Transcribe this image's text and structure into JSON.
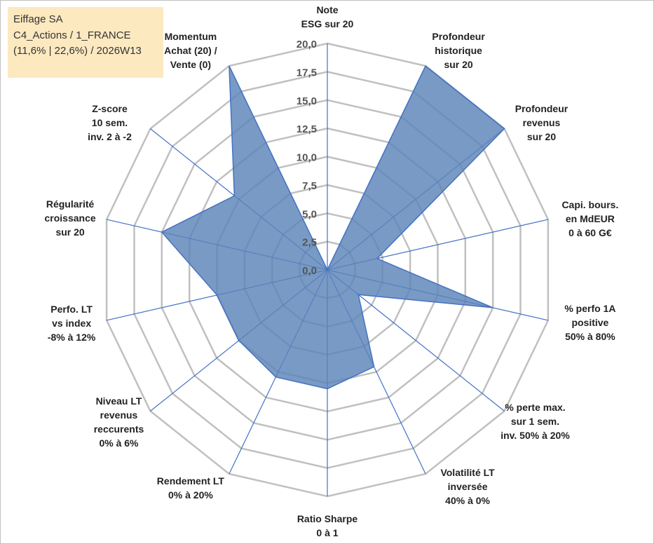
{
  "info": {
    "line1": "Eiffage SA",
    "line2": "C4_Actions / 1_FRANCE",
    "line3": "(11,6% | 22,6%) / 2026W13"
  },
  "chart_data": {
    "type": "radar",
    "rmin": 0,
    "rmax": 20,
    "ticks": [
      "0,0",
      "2,5",
      "5,0",
      "7,5",
      "10,0",
      "12,5",
      "15,0",
      "17,5",
      "20,0"
    ],
    "axes": [
      [
        "Note",
        "ESG sur 20"
      ],
      [
        "Profondeur",
        "historique",
        "sur 20"
      ],
      [
        "Profondeur",
        "revenus",
        "sur 20"
      ],
      [
        "Capi. bours.",
        "en MdEUR",
        "0 à 60 G€"
      ],
      [
        "% perfo 1A",
        "positive",
        "50% à 80%"
      ],
      [
        "% perte max.",
        "sur 1 sem.",
        "inv. 50% à 20%"
      ],
      [
        "Volatilité LT",
        "inversée",
        "40% à 0%"
      ],
      [
        "Ratio Sharpe",
        "0 à 1"
      ],
      [
        "Rendement LT",
        "0% à 20%"
      ],
      [
        "Niveau LT",
        "revenus",
        "reccurents",
        "0% à 6%"
      ],
      [
        "Perfo. LT",
        "vs index",
        "-8% à 12%"
      ],
      [
        "Régularité",
        "croissance",
        "sur 20"
      ],
      [
        "Z-score",
        "10 sem.",
        "inv. 2 à -2"
      ],
      [
        "Momentum",
        "Achat (20) /",
        "Vente (0)"
      ]
    ],
    "values": [
      0,
      20,
      20,
      4.5,
      15,
      3.5,
      9.5,
      10.5,
      10.5,
      10,
      10,
      15,
      10.5,
      20
    ],
    "colors": {
      "fill": "#5b84b8",
      "grid": "#c0c0c0",
      "spoke": "#4472c4"
    }
  }
}
